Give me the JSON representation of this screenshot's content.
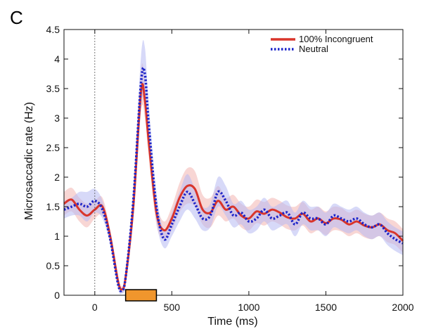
{
  "panel_label": "C",
  "chart_data": {
    "type": "line",
    "xlabel": "Time (ms)",
    "ylabel": "Microsaccadic rate (Hz)",
    "xlim": [
      -200,
      2000
    ],
    "ylim": [
      0,
      4.5
    ],
    "xticks": [
      0,
      500,
      1000,
      1500,
      2000
    ],
    "xtick_labels": [
      "0",
      "500",
      "1000",
      "1500",
      "2000"
    ],
    "yticks": [
      0,
      0.5,
      1,
      1.5,
      2,
      2.5,
      3,
      3.5,
      4,
      4.5
    ],
    "ytick_labels": [
      "0",
      "0.5",
      "1",
      "1.5",
      "2",
      "2.5",
      "3",
      "3.5",
      "4",
      "4.5"
    ],
    "grid": false,
    "legend_position": "top-right",
    "reference_line_x": 0,
    "stimulus_bar": {
      "x_start": 200,
      "x_end": 400,
      "color": "#f0962d"
    },
    "series": [
      {
        "name": "100% Incongruent",
        "color": "#d9352b",
        "band_color": "#f2b5b0",
        "style": "solid",
        "x": [
          -200,
          -150,
          -100,
          -50,
          0,
          50,
          100,
          150,
          175,
          200,
          250,
          300,
          325,
          350,
          400,
          450,
          500,
          550,
          600,
          650,
          700,
          750,
          800,
          850,
          900,
          950,
          1000,
          1050,
          1100,
          1150,
          1200,
          1250,
          1300,
          1350,
          1400,
          1450,
          1500,
          1550,
          1600,
          1650,
          1700,
          1750,
          1800,
          1850,
          1900,
          1950,
          2000
        ],
        "y": [
          1.55,
          1.62,
          1.45,
          1.35,
          1.45,
          1.5,
          1.0,
          0.25,
          0.1,
          0.3,
          1.5,
          3.45,
          3.3,
          2.6,
          1.4,
          1.1,
          1.3,
          1.65,
          1.85,
          1.8,
          1.45,
          1.4,
          1.6,
          1.45,
          1.5,
          1.35,
          1.3,
          1.42,
          1.38,
          1.45,
          1.4,
          1.32,
          1.3,
          1.38,
          1.25,
          1.3,
          1.22,
          1.3,
          1.28,
          1.2,
          1.25,
          1.18,
          1.15,
          1.2,
          1.1,
          1.05,
          0.92
        ],
        "band": [
          0.2,
          0.2,
          0.2,
          0.2,
          0.15,
          0.15,
          0.1,
          0.08,
          0.05,
          0.1,
          0.2,
          0.35,
          0.3,
          0.25,
          0.2,
          0.15,
          0.2,
          0.25,
          0.3,
          0.3,
          0.25,
          0.25,
          0.25,
          0.2,
          0.2,
          0.2,
          0.2,
          0.2,
          0.2,
          0.2,
          0.2,
          0.2,
          0.2,
          0.2,
          0.2,
          0.2,
          0.2,
          0.2,
          0.2,
          0.2,
          0.2,
          0.2,
          0.2,
          0.2,
          0.2,
          0.2,
          0.2
        ]
      },
      {
        "name": "Neutral",
        "color": "#1c24c9",
        "band_color": "#b7b9f2",
        "style": "dotted",
        "x": [
          -200,
          -150,
          -100,
          -50,
          0,
          50,
          100,
          150,
          175,
          200,
          250,
          300,
          325,
          350,
          400,
          450,
          500,
          550,
          600,
          650,
          700,
          750,
          800,
          850,
          900,
          950,
          1000,
          1050,
          1100,
          1150,
          1200,
          1250,
          1300,
          1350,
          1400,
          1450,
          1500,
          1550,
          1600,
          1650,
          1700,
          1750,
          1800,
          1850,
          1900,
          1950,
          2000
        ],
        "y": [
          1.45,
          1.5,
          1.55,
          1.5,
          1.6,
          1.45,
          0.95,
          0.2,
          0.08,
          0.3,
          1.6,
          3.6,
          3.75,
          2.9,
          1.5,
          0.95,
          1.2,
          1.5,
          1.75,
          1.55,
          1.3,
          1.35,
          1.75,
          1.6,
          1.35,
          1.4,
          1.25,
          1.3,
          1.45,
          1.3,
          1.35,
          1.4,
          1.2,
          1.4,
          1.3,
          1.3,
          1.2,
          1.35,
          1.3,
          1.25,
          1.3,
          1.2,
          1.15,
          1.2,
          1.05,
          0.95,
          0.88
        ],
        "band": [
          0.15,
          0.15,
          0.2,
          0.25,
          0.2,
          0.15,
          0.1,
          0.08,
          0.05,
          0.1,
          0.25,
          0.45,
          0.45,
          0.35,
          0.25,
          0.15,
          0.2,
          0.25,
          0.3,
          0.25,
          0.2,
          0.2,
          0.25,
          0.25,
          0.2,
          0.2,
          0.2,
          0.2,
          0.2,
          0.2,
          0.2,
          0.2,
          0.2,
          0.2,
          0.2,
          0.2,
          0.2,
          0.2,
          0.2,
          0.2,
          0.2,
          0.2,
          0.2,
          0.2,
          0.2,
          0.2,
          0.2
        ]
      }
    ]
  }
}
